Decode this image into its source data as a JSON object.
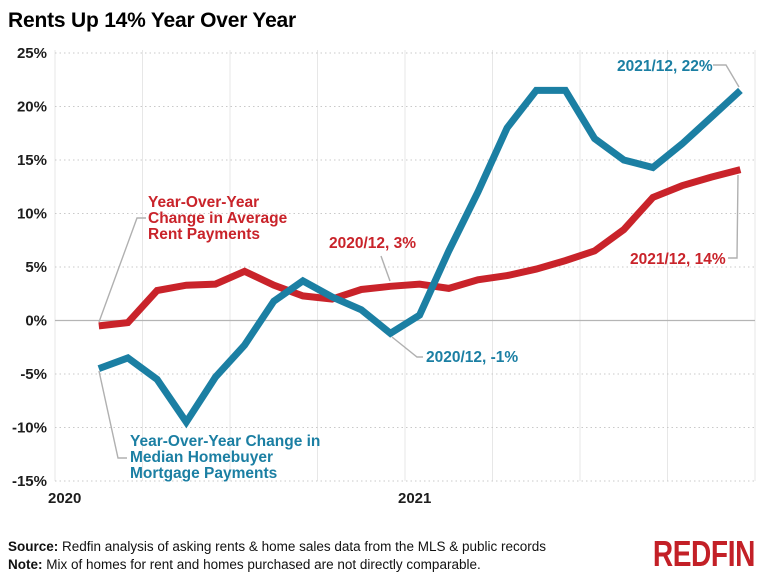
{
  "title": "Rents Up 14% Year Over Year",
  "footer": {
    "source_label": "Source:",
    "source_text": " Redfin analysis of asking rents & home sales data from the MLS & public records",
    "note_label": "Note:",
    "note_text": " Mix of homes for rent and homes purchased are not directly comparable.",
    "logo_text": "REDFIN"
  },
  "colors": {
    "rent": "#c9232a",
    "mortgage": "#1b7fa3",
    "leader": "#b0b0b0",
    "hgrid": "#c9c9c9",
    "vgrid": "#e7e7e7",
    "zero_line": "#b5b5b5",
    "logo_red": "#c32027"
  },
  "chart_data": {
    "type": "line",
    "x": [
      "2020/02",
      "2020/03",
      "2020/04",
      "2020/05",
      "2020/06",
      "2020/07",
      "2020/08",
      "2020/09",
      "2020/10",
      "2020/11",
      "2020/12",
      "2021/01",
      "2021/02",
      "2021/03",
      "2021/04",
      "2021/05",
      "2021/06",
      "2021/07",
      "2021/08",
      "2021/09",
      "2021/10",
      "2021/11",
      "2021/12"
    ],
    "series": [
      {
        "id": "rent",
        "name": "Year-Over-Year Change in Average Rent Payments",
        "color": "#c9232a",
        "values": [
          -0.5,
          -0.2,
          2.8,
          3.3,
          3.4,
          4.6,
          3.3,
          2.3,
          2.0,
          2.9,
          3.2,
          3.4,
          3.0,
          3.8,
          4.2,
          4.8,
          5.6,
          6.5,
          8.5,
          11.5,
          12.6,
          13.4,
          14.1
        ]
      },
      {
        "id": "mortgage",
        "name": "Year-Over-Year Change in Median Homebuyer Mortgage Payments",
        "color": "#1b7fa3",
        "values": [
          -4.5,
          -3.5,
          -5.5,
          -9.5,
          -5.3,
          -2.3,
          1.8,
          3.7,
          2.2,
          1.0,
          -1.2,
          0.5,
          6.5,
          12.0,
          18.0,
          21.5,
          21.5,
          17.0,
          15.0,
          14.3,
          16.5,
          19.0,
          21.5
        ]
      }
    ],
    "ylim": [
      -15,
      25
    ],
    "ytick_labels": [
      "25%",
      "20%",
      "15%",
      "10%",
      "5%",
      "0%",
      "-5%",
      "-10%",
      "-15%"
    ],
    "x_axis": {
      "total_months": 24,
      "first_point_month": 1,
      "point_offset": 0.5,
      "vgrid_every": 3,
      "ticks": [
        {
          "label": "2020",
          "month": 0
        },
        {
          "label": "2021",
          "month": 12
        }
      ]
    },
    "grid": {
      "horizontal": "dotted",
      "vertical": "solid",
      "zero_line": "solid"
    },
    "legend_position": "annotated-on-chart",
    "annotations": [
      {
        "id": "rent-series-label",
        "series": "rent",
        "lines": [
          "Year-Over-Year",
          "Change in Average",
          "Rent Payments"
        ]
      },
      {
        "id": "mortgage-series-label",
        "series": "mortgage",
        "lines": [
          "Year-Over-Year Change in",
          "Median Homebuyer",
          "Mortgage Payments"
        ]
      },
      {
        "id": "rent-2020-12",
        "series": "rent",
        "lines": [
          "2020/12, 3%"
        ]
      },
      {
        "id": "mortgage-2020-12",
        "series": "mortgage",
        "lines": [
          "2020/12, -1%"
        ]
      },
      {
        "id": "mortgage-2021-12",
        "series": "mortgage",
        "lines": [
          "2021/12, 22%"
        ]
      },
      {
        "id": "rent-2021-12",
        "series": "rent",
        "lines": [
          "2021/12, 14%"
        ]
      }
    ]
  }
}
